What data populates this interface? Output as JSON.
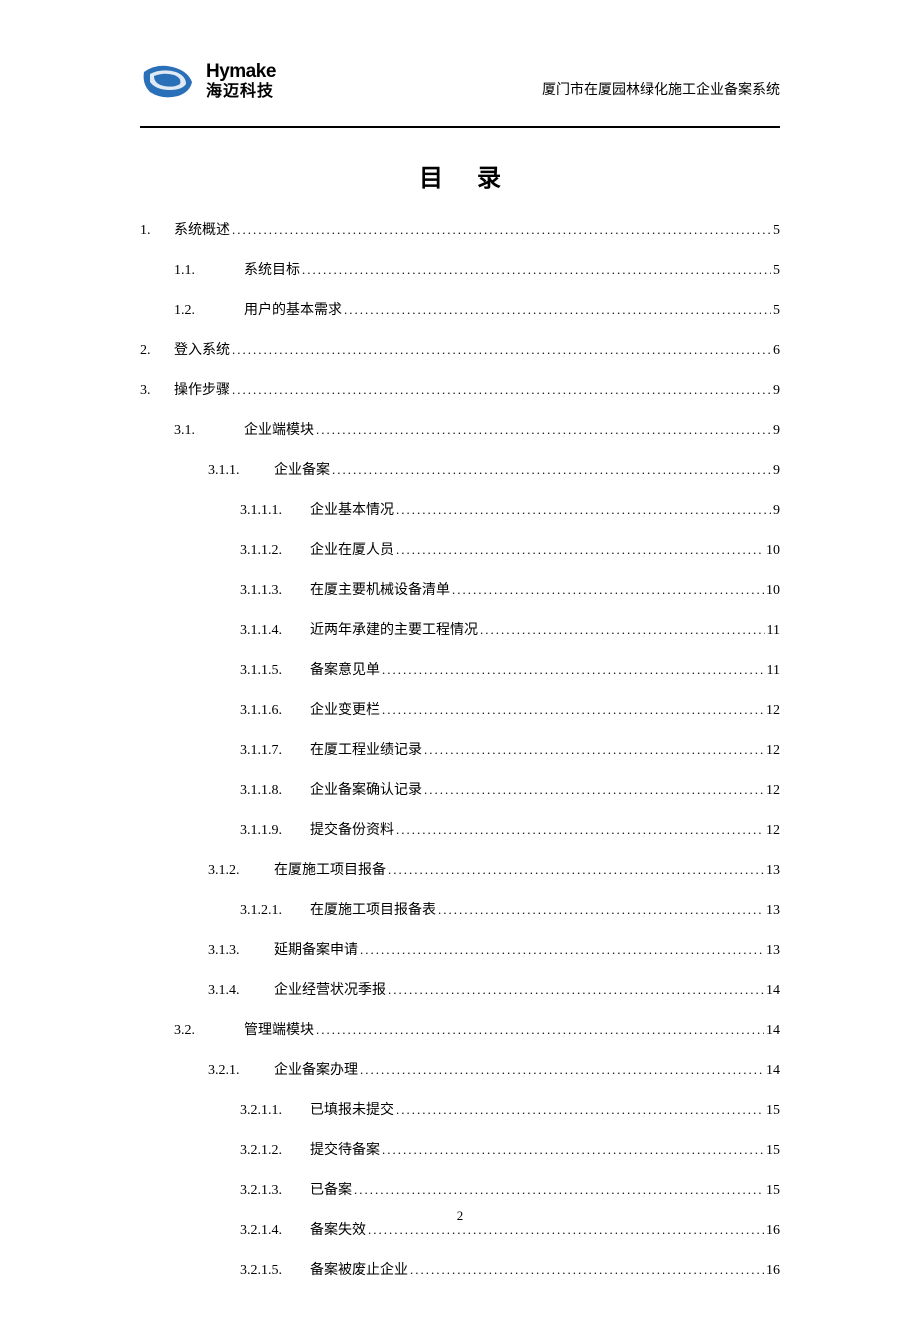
{
  "header": {
    "logo_en": "Hymake",
    "logo_cn": "海迈科技",
    "logo_color": "#2a70b8",
    "doc_title": "厦门市在厦园林绿化施工企业备案系统"
  },
  "toc_title": "目录",
  "page_number": "2",
  "entries": [
    {
      "level": 1,
      "num": "1.",
      "label": "系统概述",
      "page": "5"
    },
    {
      "level": 2,
      "num": "1.1.",
      "label": "系统目标",
      "page": "5"
    },
    {
      "level": 2,
      "num": "1.2.",
      "label": "用户的基本需求",
      "page": "5"
    },
    {
      "level": 1,
      "num": "2.",
      "label": "登入系统",
      "page": "6"
    },
    {
      "level": 1,
      "num": "3.",
      "label": "操作步骤",
      "page": "9"
    },
    {
      "level": 2,
      "num": "3.1.",
      "label": "企业端模块",
      "page": "9"
    },
    {
      "level": 3,
      "num": "3.1.1.",
      "label": "企业备案",
      "page": "9"
    },
    {
      "level": 4,
      "num": "3.1.1.1.",
      "label": "企业基本情况",
      "page": "9"
    },
    {
      "level": 4,
      "num": "3.1.1.2.",
      "label": "企业在厦人员",
      "page": "10"
    },
    {
      "level": 4,
      "num": "3.1.1.3.",
      "label": "在厦主要机械设备清单",
      "page": "10"
    },
    {
      "level": 4,
      "num": "3.1.1.4.",
      "label": "近两年承建的主要工程情况",
      "page": "11"
    },
    {
      "level": 4,
      "num": "3.1.1.5.",
      "label": "备案意见单",
      "page": "11"
    },
    {
      "level": 4,
      "num": "3.1.1.6.",
      "label": "企业变更栏",
      "page": "12"
    },
    {
      "level": 4,
      "num": "3.1.1.7.",
      "label": "在厦工程业绩记录",
      "page": "12"
    },
    {
      "level": 4,
      "num": "3.1.1.8.",
      "label": "企业备案确认记录",
      "page": "12"
    },
    {
      "level": 4,
      "num": "3.1.1.9.",
      "label": "提交备份资料",
      "page": "12"
    },
    {
      "level": 3,
      "num": "3.1.2.",
      "label": "在厦施工项目报备",
      "page": "13"
    },
    {
      "level": 4,
      "num": "3.1.2.1.",
      "label": "在厦施工项目报备表",
      "page": "13"
    },
    {
      "level": 3,
      "num": "3.1.3.",
      "label": "延期备案申请",
      "page": "13"
    },
    {
      "level": 3,
      "num": "3.1.4.",
      "label": "企业经营状况季报",
      "page": "14"
    },
    {
      "level": 2,
      "num": "3.2.",
      "label": "管理端模块",
      "page": "14"
    },
    {
      "level": 3,
      "num": "3.2.1.",
      "label": "企业备案办理",
      "page": "14"
    },
    {
      "level": 4,
      "num": "3.2.1.1.",
      "label": "已填报未提交",
      "page": "15"
    },
    {
      "level": 4,
      "num": "3.2.1.2.",
      "label": "提交待备案",
      "page": "15"
    },
    {
      "level": 4,
      "num": "3.2.1.3.",
      "label": "已备案",
      "page": "15"
    },
    {
      "level": 4,
      "num": "3.2.1.4.",
      "label": "备案失效",
      "page": "16"
    },
    {
      "level": 4,
      "num": "3.2.1.5.",
      "label": "备案被废止企业",
      "page": "16"
    }
  ]
}
